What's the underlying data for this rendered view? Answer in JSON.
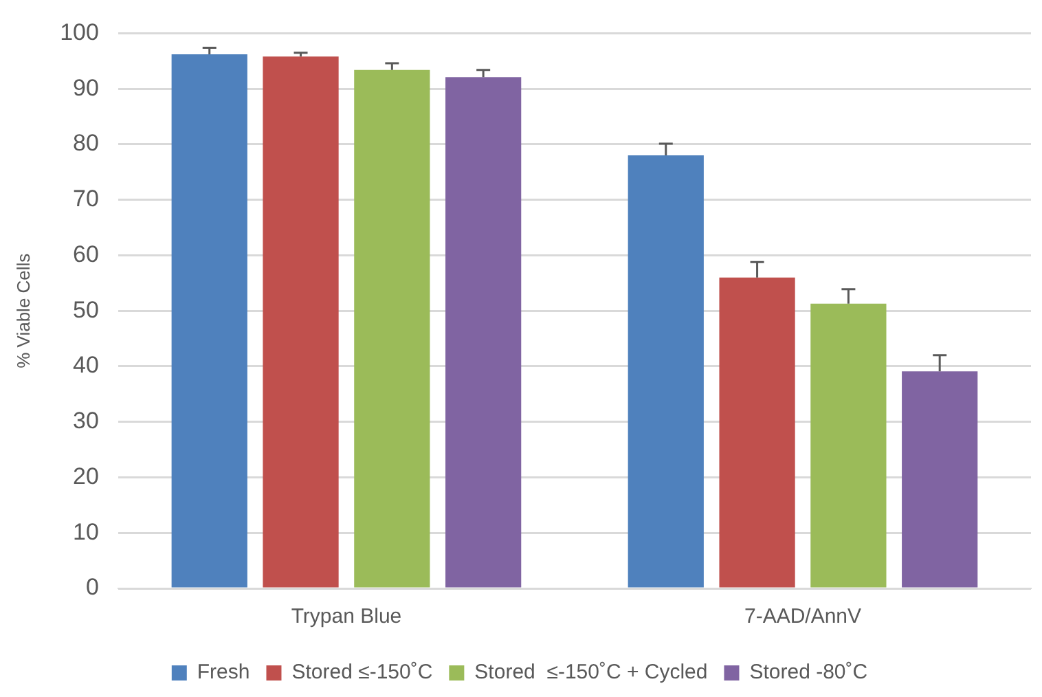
{
  "chart_data": {
    "type": "bar",
    "ylabel": "% Viable Cells",
    "categories": [
      "Trypan Blue",
      "7-AAD/AnnV"
    ],
    "series": [
      {
        "name": "Fresh",
        "color": "#4f81bd",
        "values": [
          96.2,
          78.0
        ],
        "errors": [
          [
            96.2,
            97.4
          ],
          [
            78.0,
            80.1
          ]
        ]
      },
      {
        "name": "Stored ≤-150˚C",
        "color": "#c0504d",
        "values": [
          95.8,
          56.0
        ],
        "errors": [
          [
            95.8,
            96.5
          ],
          [
            56.0,
            58.8
          ]
        ]
      },
      {
        "name": "Stored  ≤-150˚C + Cycled",
        "color": "#9bbb59",
        "values": [
          93.4,
          51.3
        ],
        "errors": [
          [
            93.4,
            94.6
          ],
          [
            51.3,
            53.9
          ]
        ]
      },
      {
        "name": "Stored -80˚C",
        "color": "#8064a2",
        "values": [
          92.1,
          39.1
        ],
        "errors": [
          [
            92.1,
            93.4
          ],
          [
            39.1,
            42.0
          ]
        ]
      }
    ],
    "ylim": [
      0,
      100
    ],
    "yticks": [
      0,
      10,
      20,
      30,
      40,
      50,
      60,
      70,
      80,
      90,
      100
    ],
    "grid": "y",
    "legend": "bottom"
  }
}
